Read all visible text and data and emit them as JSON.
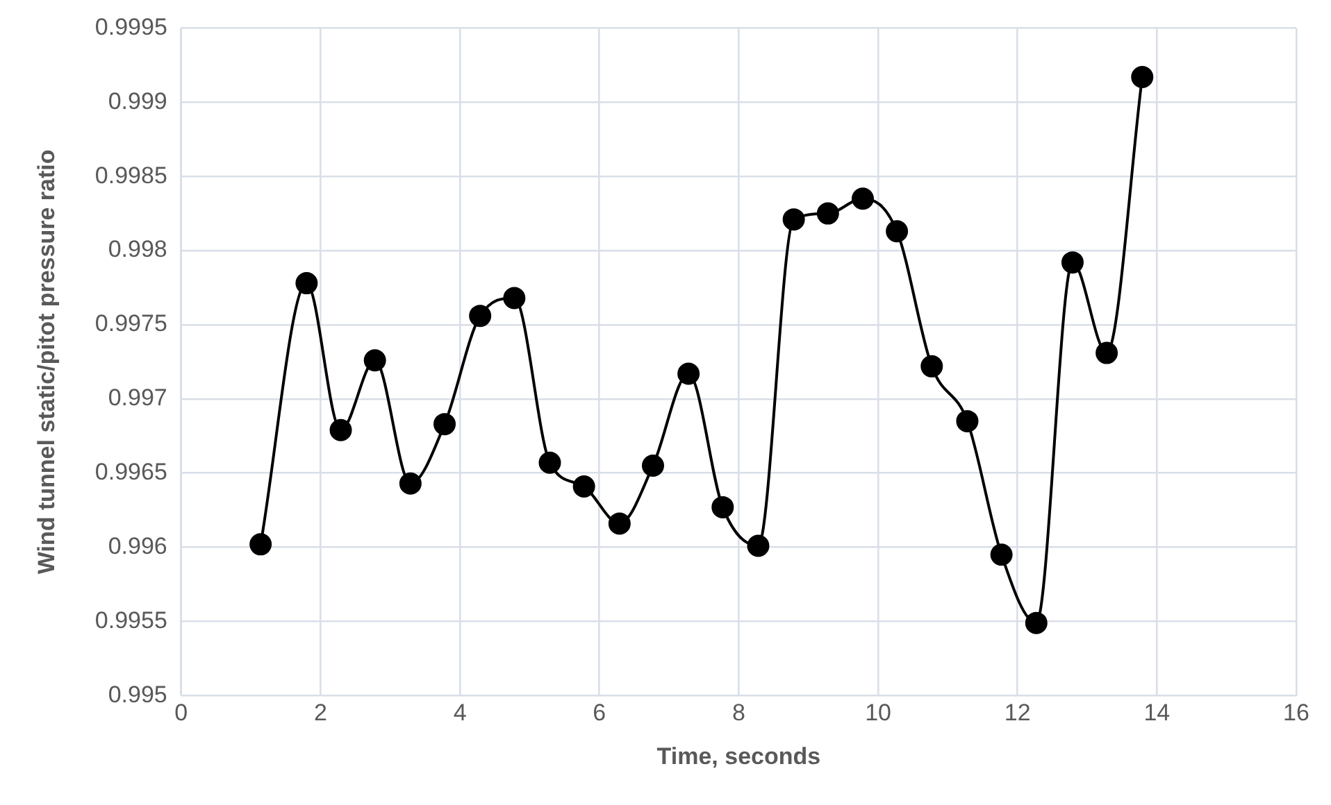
{
  "chart_data": {
    "type": "line",
    "xlabel": "Time, seconds",
    "ylabel": "Wind tunnel static/pitot pressure ratio",
    "x": [
      1.14,
      1.8,
      2.29,
      2.78,
      3.29,
      3.78,
      4.29,
      4.78,
      5.29,
      5.78,
      6.29,
      6.77,
      7.28,
      7.77,
      8.28,
      8.79,
      9.28,
      9.78,
      10.27,
      10.77,
      11.28,
      11.77,
      12.27,
      12.79,
      13.28,
      13.79
    ],
    "series": [
      {
        "color": "#000000",
        "values": [
          0.99602,
          0.99778,
          0.99679,
          0.99726,
          0.99643,
          0.99683,
          0.99756,
          0.99768,
          0.99657,
          0.99641,
          0.99616,
          0.99655,
          0.99717,
          0.99627,
          0.99601,
          0.99821,
          0.99825,
          0.99835,
          0.99813,
          0.99722,
          0.99685,
          0.99595,
          0.99549,
          0.99792,
          0.99731,
          0.99917
        ]
      }
    ],
    "xlim": [
      0,
      16
    ],
    "xticks": [
      0,
      2,
      4,
      6,
      8,
      10,
      12,
      14,
      16
    ],
    "ylim": [
      0.995,
      0.9995
    ],
    "yticks": [
      0.995,
      0.9955,
      0.996,
      0.9965,
      0.997,
      0.9975,
      0.998,
      0.9985,
      0.999,
      0.9995
    ],
    "grid": true,
    "legend": false,
    "marker": "circle",
    "line_style": "solid"
  }
}
